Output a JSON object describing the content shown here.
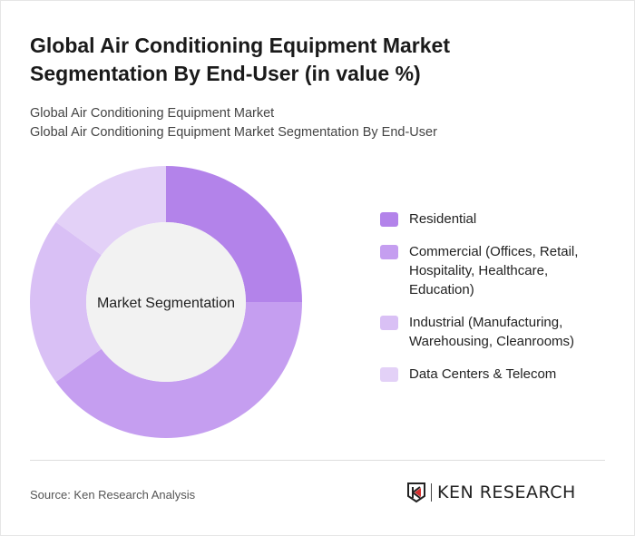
{
  "header": {
    "title": "Global Air Conditioning Equipment Market Segmentation By End-User (in value %)",
    "subtitle_line1": "Global Air Conditioning Equipment Market",
    "subtitle_line2": "Global Air Conditioning Equipment Market Segmentation By End-User"
  },
  "chart_data": {
    "type": "pie",
    "variant": "donut",
    "center_label": "Market Segmentation",
    "categories": [
      "Residential",
      "Commercial (Offices, Retail, Hospitality, Healthcare, Education)",
      "Industrial (Manufacturing, Warehousing, Cleanrooms)",
      "Data Centers & Telecom"
    ],
    "values": [
      25,
      40,
      20,
      15
    ],
    "colors": [
      "#b383ea",
      "#c59ef0",
      "#d9c0f5",
      "#e3d1f7"
    ],
    "legend_position": "right"
  },
  "footer": {
    "source": "Source: Ken Research Analysis",
    "logo_text": "KEN RESEARCH"
  }
}
